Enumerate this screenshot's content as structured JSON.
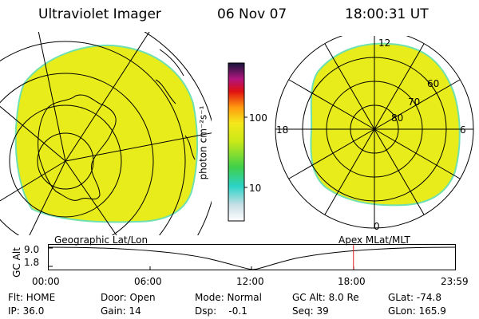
{
  "header": {
    "instrument": "Ultraviolet Imager",
    "date": "06 Nov 07",
    "time": "18:00:31 UT"
  },
  "polar_plot": {
    "mlt_labels": [
      "12",
      "18",
      "6",
      "0"
    ],
    "lat_labels": [
      "60",
      "70",
      "80"
    ]
  },
  "colorbar": {
    "unit_label": "photon cm⁻²s⁻¹",
    "ticks": [
      "100",
      "10"
    ]
  },
  "timeline": {
    "left_label": "Geographic Lat/Lon",
    "right_label": "Apex  MLat/MLT",
    "axis_label": "GC Alt",
    "y_ticks": [
      "9.0",
      "1.8"
    ],
    "x_ticks": [
      "00:00",
      "06:00",
      "12:00",
      "18:00",
      "23:59"
    ],
    "current_time_fraction": 0.75
  },
  "status": {
    "row1": [
      {
        "text": "Flt: HOME"
      },
      {
        "text": "Door: Open"
      },
      {
        "text": "Mode: Normal"
      },
      {
        "text": "GC Alt: 8.0 Re"
      },
      {
        "text": "GLat: -74.8"
      }
    ],
    "row2": [
      {
        "text": "IP: 36.0"
      },
      {
        "text": "Gain: 14"
      },
      {
        "text": "Dsp:    -0.1"
      },
      {
        "text": "Seq: 39"
      },
      {
        "text": "GLon: 165.9"
      }
    ]
  },
  "colors": {
    "fill": "#e8ec1a",
    "edge": "#6fe0b0"
  }
}
